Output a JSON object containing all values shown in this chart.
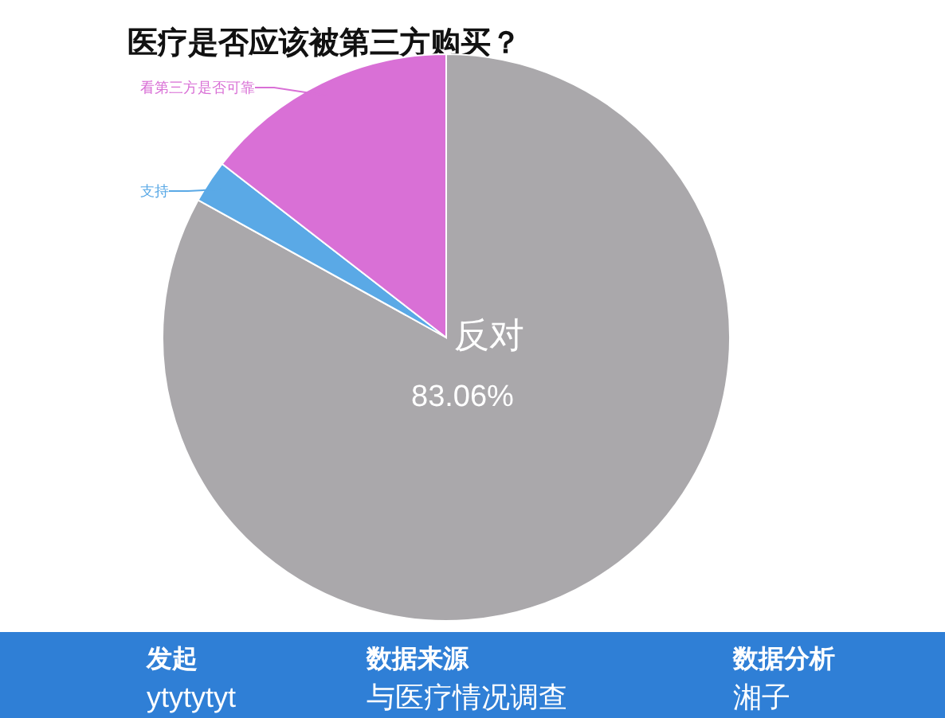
{
  "chart_data": {
    "type": "pie",
    "title": "医疗是否应该被第三方购买？",
    "categories": [
      "反对",
      "支持",
      "看第三方是否可靠"
    ],
    "values": [
      83.06,
      2.44,
      14.5
    ],
    "colors": [
      "#aaa8ab",
      "#5aa9e6",
      "#d970d6"
    ],
    "value_labels": [
      "83.06%",
      null,
      null
    ],
    "annotations": [
      "发起",
      "ytytytyt",
      "数据来源",
      "与医疗情况调查",
      "数据分析",
      "湘子"
    ]
  }
}
